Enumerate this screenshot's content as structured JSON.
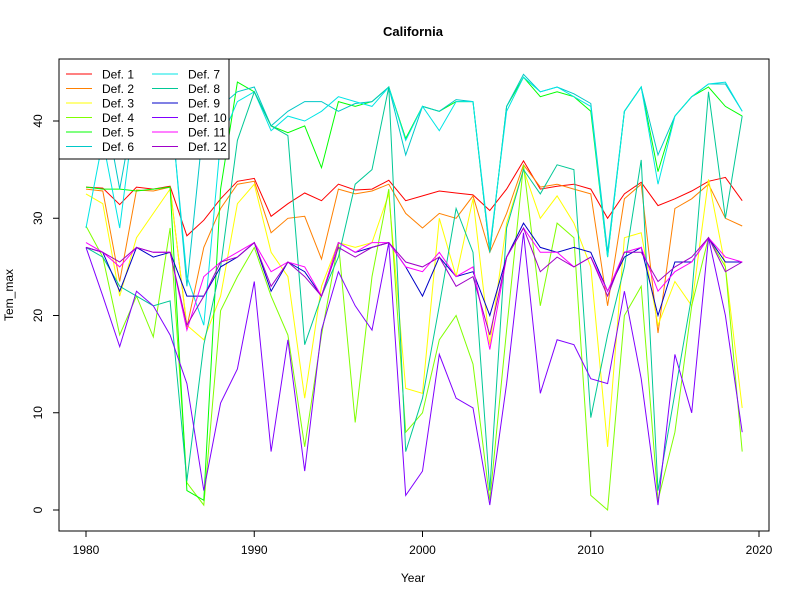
{
  "chart_data": {
    "type": "line",
    "title": "California",
    "xlabel": "Year",
    "ylabel": "Tem_max",
    "xlim": [
      1980,
      2020
    ],
    "ylim": [
      0,
      45
    ],
    "xticks": [
      1980,
      1990,
      2000,
      2010,
      2020
    ],
    "yticks": [
      0,
      10,
      20,
      30,
      40
    ],
    "grid": false,
    "legend_position": "top-left",
    "x": [
      1980,
      1981,
      1982,
      1983,
      1984,
      1985,
      1986,
      1987,
      1988,
      1989,
      1990,
      1991,
      1992,
      1993,
      1994,
      1995,
      1996,
      1997,
      1998,
      1999,
      2000,
      2001,
      2002,
      2003,
      2004,
      2005,
      2006,
      2007,
      2008,
      2009,
      2010,
      2011,
      2012,
      2013,
      2014,
      2015,
      2016,
      2017,
      2018,
      2019
    ],
    "series": [
      {
        "name": "Def. 1",
        "color": "#FF0000",
        "values": [
          33.2,
          33.1,
          31.4,
          33.2,
          33.0,
          33.3,
          28.2,
          29.8,
          32.0,
          33.8,
          34.1,
          30.2,
          31.5,
          32.6,
          31.8,
          33.5,
          32.9,
          33.0,
          33.9,
          31.8,
          32.3,
          32.8,
          32.6,
          32.4,
          30.8,
          33.0,
          35.9,
          33.0,
          33.3,
          33.5,
          33.0,
          30.0,
          32.5,
          33.7,
          31.3,
          32.0,
          32.8,
          33.8,
          34.2,
          31.8
        ]
      },
      {
        "name": "Def. 2",
        "color": "#FF8000",
        "values": [
          33.0,
          32.8,
          23.5,
          32.9,
          32.8,
          33.2,
          18.8,
          27.0,
          31.0,
          33.5,
          33.8,
          28.5,
          30.0,
          30.2,
          25.8,
          33.0,
          32.5,
          32.8,
          33.5,
          30.5,
          29.0,
          30.5,
          30.0,
          32.3,
          26.5,
          30.5,
          35.5,
          33.2,
          33.5,
          33.0,
          32.5,
          21.0,
          32.0,
          33.5,
          18.2,
          31.0,
          32.0,
          33.5,
          30.0,
          29.2
        ]
      },
      {
        "name": "Def. 3",
        "color": "#FFFF00",
        "values": [
          32.5,
          31.5,
          22.0,
          28.0,
          30.5,
          33.0,
          19.0,
          17.5,
          22.0,
          31.5,
          33.5,
          26.5,
          24.0,
          11.5,
          23.0,
          27.5,
          27.0,
          27.5,
          32.5,
          12.5,
          12.0,
          30.0,
          24.0,
          32.0,
          17.0,
          29.5,
          35.0,
          30.0,
          32.3,
          29.5,
          25.0,
          6.5,
          28.0,
          28.5,
          19.0,
          23.5,
          21.0,
          34.0,
          25.0,
          10.5
        ]
      },
      {
        "name": "Def. 4",
        "color": "#80FF00",
        "values": [
          29.2,
          26.0,
          18.0,
          22.0,
          17.8,
          29.0,
          2.8,
          0.5,
          20.5,
          24.0,
          27.0,
          22.0,
          18.0,
          6.5,
          18.0,
          27.5,
          9.0,
          24.0,
          33.0,
          8.0,
          10.0,
          17.5,
          20.0,
          15.0,
          1.0,
          18.5,
          35.5,
          21.0,
          29.5,
          28.0,
          1.5,
          0.0,
          20.0,
          23.0,
          1.0,
          8.0,
          21.0,
          28.0,
          25.0,
          6.0
        ]
      },
      {
        "name": "Def. 5",
        "color": "#00FF00",
        "values": [
          33.2,
          33.0,
          33.0,
          32.8,
          33.0,
          33.2,
          2.0,
          1.0,
          33.0,
          44.0,
          43.0,
          39.5,
          38.8,
          39.5,
          35.2,
          42.0,
          41.5,
          42.0,
          43.5,
          38.2,
          41.5,
          41.0,
          42.0,
          42.0,
          26.5,
          41.5,
          44.5,
          42.5,
          43.0,
          42.5,
          41.0,
          26.0,
          41.0,
          43.5,
          34.8,
          40.5,
          42.5,
          43.5,
          41.5,
          40.5
        ]
      },
      {
        "name": "Def. 6",
        "color": "#00C8C8",
        "values": [
          42.0,
          42.5,
          33.0,
          42.5,
          42.0,
          42.5,
          23.0,
          40.0,
          41.5,
          43.0,
          43.5,
          39.5,
          41.0,
          42.0,
          42.0,
          41.0,
          41.8,
          42.0,
          43.5,
          36.5,
          41.5,
          41.0,
          42.2,
          42.0,
          26.5,
          41.5,
          44.8,
          43.0,
          43.5,
          42.8,
          41.8,
          26.5,
          41.0,
          43.5,
          36.5,
          40.5,
          42.5,
          43.8,
          43.8,
          41.0
        ]
      },
      {
        "name": "Def. 7",
        "color": "#00E5E5",
        "values": [
          29.0,
          38.0,
          29.0,
          42.5,
          42.5,
          42.0,
          24.0,
          19.0,
          38.0,
          42.0,
          43.0,
          39.0,
          40.5,
          40.0,
          41.0,
          42.5,
          42.0,
          41.5,
          43.5,
          38.0,
          41.5,
          39.0,
          42.0,
          42.0,
          27.0,
          41.0,
          44.5,
          43.0,
          43.5,
          42.5,
          41.5,
          26.0,
          41.0,
          43.5,
          33.5,
          40.5,
          42.5,
          43.8,
          44.0,
          41.0
        ]
      },
      {
        "name": "Def. 8",
        "color": "#00C896",
        "values": [
          27.0,
          26.0,
          23.0,
          22.0,
          21.0,
          21.5,
          3.0,
          17.0,
          25.0,
          38.0,
          43.0,
          39.5,
          38.5,
          17.0,
          22.0,
          26.0,
          33.5,
          35.0,
          43.5,
          6.0,
          11.5,
          21.0,
          31.0,
          26.5,
          2.0,
          29.0,
          35.0,
          32.5,
          35.5,
          35.0,
          9.5,
          18.0,
          25.0,
          36.0,
          2.0,
          12.0,
          22.0,
          43.0,
          30.0,
          40.5
        ]
      },
      {
        "name": "Def. 9",
        "color": "#0000C8",
        "values": [
          27.0,
          26.5,
          22.5,
          27.0,
          26.0,
          26.5,
          22.0,
          22.0,
          25.0,
          26.0,
          27.5,
          22.5,
          25.5,
          24.5,
          22.0,
          27.5,
          26.5,
          27.0,
          27.5,
          25.0,
          22.0,
          26.0,
          24.0,
          24.5,
          20.0,
          26.0,
          29.5,
          27.0,
          26.5,
          27.0,
          26.5,
          22.5,
          26.0,
          27.0,
          20.0,
          25.5,
          25.5,
          28.0,
          25.5,
          25.5
        ]
      },
      {
        "name": "Def. 10",
        "color": "#8000FF",
        "values": [
          27.0,
          22.0,
          16.8,
          22.5,
          21.0,
          18.0,
          13.0,
          2.0,
          11.0,
          14.5,
          23.5,
          6.0,
          17.5,
          4.0,
          18.5,
          24.5,
          21.0,
          18.5,
          27.5,
          1.5,
          4.0,
          16.0,
          11.5,
          10.5,
          0.5,
          13.0,
          28.5,
          12.0,
          17.5,
          17.0,
          13.5,
          13.0,
          22.5,
          13.5,
          0.5,
          16.0,
          10.0,
          28.0,
          20.0,
          8.0
        ]
      },
      {
        "name": "Def. 11",
        "color": "#FF00FF",
        "values": [
          27.5,
          26.5,
          25.0,
          27.0,
          26.5,
          26.5,
          18.5,
          24.0,
          25.5,
          26.5,
          27.5,
          24.5,
          25.5,
          25.0,
          22.0,
          27.5,
          26.5,
          27.5,
          27.5,
          25.0,
          24.5,
          26.5,
          24.0,
          25.0,
          16.5,
          26.0,
          29.0,
          26.5,
          26.5,
          25.0,
          26.0,
          22.5,
          26.5,
          27.0,
          22.5,
          24.5,
          25.5,
          28.0,
          26.0,
          25.5
        ]
      },
      {
        "name": "Def. 12",
        "color": "#A000C8",
        "values": [
          27.0,
          26.5,
          25.5,
          27.0,
          26.5,
          26.5,
          19.0,
          22.0,
          25.5,
          26.0,
          27.5,
          23.0,
          25.5,
          24.0,
          22.0,
          27.0,
          26.0,
          27.0,
          27.5,
          25.5,
          25.0,
          26.0,
          23.0,
          24.0,
          18.0,
          26.0,
          29.0,
          24.5,
          26.0,
          25.0,
          26.0,
          22.0,
          26.5,
          26.5,
          23.5,
          25.0,
          26.0,
          28.0,
          24.5,
          25.5
        ]
      }
    ]
  }
}
